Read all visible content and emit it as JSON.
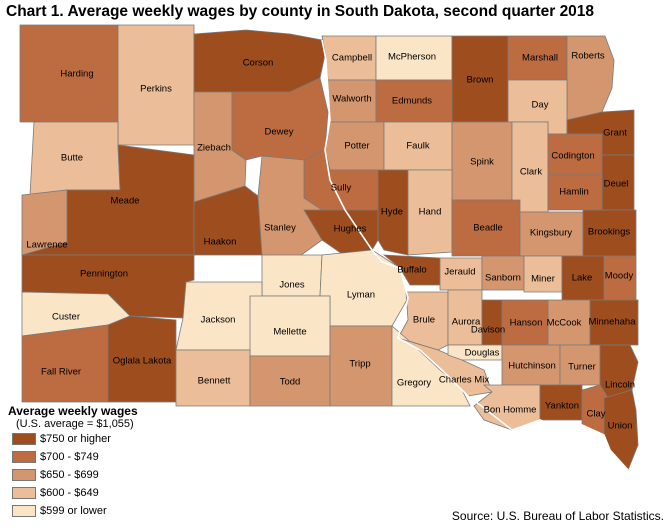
{
  "title": "Chart 1. Average weekly wages by county in South Dakota, second quarter 2018",
  "source": "Source: U.S. Bureau of Labor Statistics.",
  "legend": {
    "title": "Average weekly wages",
    "subtitle": "(U.S. average = $1,055)",
    "items": [
      {
        "label": "$750 or higher",
        "color": "#9e4d1f"
      },
      {
        "label": "$700 - $749",
        "color": "#bd6c42"
      },
      {
        "label": "$650 - $699",
        "color": "#d4966e"
      },
      {
        "label": "$600 - $649",
        "color": "#ebbd98"
      },
      {
        "label": "$599 or lower",
        "color": "#fbe5c7"
      }
    ]
  },
  "counties": [
    {
      "name": "Harding",
      "wage_class": 1
    },
    {
      "name": "Perkins",
      "wage_class": 3
    },
    {
      "name": "Corson",
      "wage_class": 0
    },
    {
      "name": "Campbell",
      "wage_class": 3
    },
    {
      "name": "McPherson",
      "wage_class": 4
    },
    {
      "name": "Brown",
      "wage_class": 0
    },
    {
      "name": "Marshall",
      "wage_class": 1
    },
    {
      "name": "Roberts",
      "wage_class": 2
    },
    {
      "name": "Walworth",
      "wage_class": 2
    },
    {
      "name": "Edmunds",
      "wage_class": 1
    },
    {
      "name": "Day",
      "wage_class": 3
    },
    {
      "name": "Butte",
      "wage_class": 3
    },
    {
      "name": "Ziebach",
      "wage_class": 2
    },
    {
      "name": "Dewey",
      "wage_class": 1
    },
    {
      "name": "Potter",
      "wage_class": 2
    },
    {
      "name": "Faulk",
      "wage_class": 3
    },
    {
      "name": "Spink",
      "wage_class": 2
    },
    {
      "name": "Clark",
      "wage_class": 3
    },
    {
      "name": "Codington",
      "wage_class": 1
    },
    {
      "name": "Grant",
      "wage_class": 0
    },
    {
      "name": "Deuel",
      "wage_class": 0
    },
    {
      "name": "Hamlin",
      "wage_class": 1
    },
    {
      "name": "Meade",
      "wage_class": 0
    },
    {
      "name": "Sully",
      "wage_class": 1
    },
    {
      "name": "Hyde",
      "wage_class": 0
    },
    {
      "name": "Hand",
      "wage_class": 3
    },
    {
      "name": "Beadle",
      "wage_class": 1
    },
    {
      "name": "Kingsbury",
      "wage_class": 2
    },
    {
      "name": "Brookings",
      "wage_class": 0
    },
    {
      "name": "Lawrence",
      "wage_class": 2
    },
    {
      "name": "Haakon",
      "wage_class": 0
    },
    {
      "name": "Stanley",
      "wage_class": 2
    },
    {
      "name": "Hughes",
      "wage_class": 0
    },
    {
      "name": "Pennington",
      "wage_class": 0
    },
    {
      "name": "Jones",
      "wage_class": 4
    },
    {
      "name": "Lyman",
      "wage_class": 4
    },
    {
      "name": "Buffalo",
      "wage_class": 0
    },
    {
      "name": "Jerauld",
      "wage_class": 3
    },
    {
      "name": "Sanborn",
      "wage_class": 2
    },
    {
      "name": "Miner",
      "wage_class": 3
    },
    {
      "name": "Lake",
      "wage_class": 0
    },
    {
      "name": "Moody",
      "wage_class": 1
    },
    {
      "name": "Custer",
      "wage_class": 4
    },
    {
      "name": "Jackson",
      "wage_class": 4
    },
    {
      "name": "Mellette",
      "wage_class": 4
    },
    {
      "name": "Brule",
      "wage_class": 3
    },
    {
      "name": "Aurora",
      "wage_class": 3
    },
    {
      "name": "Davison",
      "wage_class": 0
    },
    {
      "name": "Hanson",
      "wage_class": 1
    },
    {
      "name": "McCook",
      "wage_class": 2
    },
    {
      "name": "Minnehaha",
      "wage_class": 0
    },
    {
      "name": "Fall River",
      "wage_class": 1
    },
    {
      "name": "Oglala Lakota",
      "wage_class": 0
    },
    {
      "name": "Bennett",
      "wage_class": 3
    },
    {
      "name": "Todd",
      "wage_class": 2
    },
    {
      "name": "Tripp",
      "wage_class": 2
    },
    {
      "name": "Gregory",
      "wage_class": 4
    },
    {
      "name": "Charles Mix",
      "wage_class": 3
    },
    {
      "name": "Douglas",
      "wage_class": 4
    },
    {
      "name": "Hutchinson",
      "wage_class": 2
    },
    {
      "name": "Turner",
      "wage_class": 2
    },
    {
      "name": "Lincoln",
      "wage_class": 0
    },
    {
      "name": "Bon Homme",
      "wage_class": 3
    },
    {
      "name": "Yankton",
      "wage_class": 0
    },
    {
      "name": "Clay",
      "wage_class": 1
    },
    {
      "name": "Union",
      "wage_class": 0
    }
  ]
}
